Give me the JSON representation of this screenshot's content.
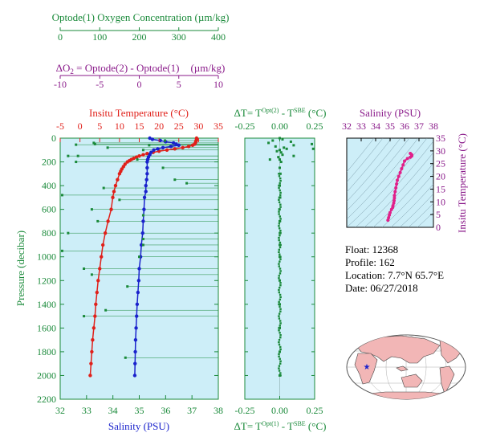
{
  "colors": {
    "oxygen": "#1a8a3a",
    "delta_o2": "#8a1a8a",
    "temperature": "#e0201a",
    "salinity": "#1a22cc",
    "delta_t": "#1a8a3a",
    "ts": "#e0208a",
    "panel_bg": "#cdeef8"
  },
  "chart_data": [
    {
      "type": "scatter",
      "panel": "profiles",
      "axes": {
        "oxygen": {
          "label": "Optode(1) Oxygen Concentration (µm/kg)",
          "ticks": [
            "0",
            "100",
            "200",
            "300",
            "400"
          ],
          "range": [
            0,
            400
          ]
        },
        "delta_o2": {
          "label_prefix": "ΔO",
          "label_sub": "2",
          "label_rest": " = Optode(2) - Optode(1)",
          "label_unit": "(µm/kg)",
          "ticks": [
            "-10",
            "-5",
            "0",
            "5",
            "10"
          ],
          "range": [
            -10,
            10
          ]
        },
        "temperature": {
          "label": "Insitu Temperature (°C)",
          "ticks": [
            "-5",
            "0",
            "5",
            "10",
            "15",
            "20",
            "25",
            "30",
            "35"
          ],
          "range": [
            -5,
            35
          ]
        },
        "salinity": {
          "label": "Salinity (PSU)",
          "ticks": [
            "32",
            "33",
            "34",
            "35",
            "36",
            "37",
            "38"
          ],
          "range": [
            32,
            38
          ]
        },
        "pressure": {
          "label": "Pressure (decibar)",
          "ticks": [
            "0",
            "200",
            "400",
            "600",
            "800",
            "1000",
            "1200",
            "1400",
            "1600",
            "1800",
            "2000",
            "2200"
          ],
          "range": [
            0,
            2200
          ],
          "inverted": true
        }
      },
      "temperature_profile": {
        "pressure": [
          0,
          10,
          20,
          30,
          40,
          50,
          60,
          70,
          80,
          90,
          100,
          110,
          120,
          130,
          140,
          150,
          160,
          170,
          180,
          190,
          200,
          220,
          240,
          260,
          280,
          300,
          350,
          400,
          450,
          500,
          600,
          700,
          800,
          900,
          1000,
          1100,
          1200,
          1300,
          1400,
          1500,
          1600,
          1700,
          1800,
          1900,
          2000
        ],
        "values": [
          29.5,
          29.5,
          29.4,
          29.3,
          29.2,
          29.0,
          28.5,
          27.5,
          26.0,
          24.0,
          22.0,
          20.0,
          18.5,
          17.0,
          16.0,
          15.0,
          14.3,
          13.6,
          13.0,
          12.5,
          12.0,
          11.4,
          11.0,
          10.6,
          10.3,
          10.0,
          9.5,
          9.0,
          8.6,
          8.3,
          7.9,
          7.1,
          6.4,
          5.8,
          5.4,
          5.0,
          4.6,
          4.3,
          4.0,
          3.8,
          3.5,
          3.2,
          3.0,
          2.8,
          2.6
        ]
      },
      "salinity_profile": {
        "pressure": [
          0,
          10,
          20,
          30,
          40,
          50,
          60,
          70,
          80,
          90,
          100,
          120,
          140,
          160,
          180,
          200,
          250,
          300,
          350,
          400,
          450,
          500,
          600,
          700,
          800,
          900,
          1000,
          1100,
          1200,
          1300,
          1400,
          1500,
          1600,
          1700,
          1800,
          1900,
          2000
        ],
        "values": [
          35.4,
          35.5,
          35.8,
          36.0,
          36.3,
          36.4,
          36.5,
          36.2,
          35.9,
          35.7,
          35.55,
          35.45,
          35.4,
          35.35,
          35.32,
          35.3,
          35.3,
          35.3,
          35.28,
          35.25,
          35.25,
          35.2,
          35.18,
          35.15,
          35.13,
          35.08,
          35.05,
          35.0,
          34.98,
          34.95,
          34.92,
          34.9,
          34.88,
          34.86,
          34.85,
          34.84,
          34.83
        ]
      },
      "oxygen_points": {
        "pressure": [
          20,
          40,
          50,
          55,
          60,
          80,
          100,
          150,
          150,
          180,
          200,
          250,
          350,
          380,
          420,
          480,
          520,
          600,
          650,
          700,
          800,
          850,
          900,
          950,
          1000,
          1100,
          1150,
          1250,
          1450,
          1500,
          1850
        ],
        "values": [
          265,
          85,
          88,
          40,
          225,
          120,
          210,
          20,
          45,
          195,
          40,
          260,
          290,
          320,
          110,
          5,
          150,
          80,
          210,
          95,
          20,
          210,
          210,
          5,
          200,
          60,
          80,
          170,
          115,
          60,
          165
        ]
      }
    },
    {
      "type": "scatter",
      "panel": "delta_t",
      "top_label": {
        "prefix": "ΔT= T",
        "sup1": "Opt(2)",
        "mid": " - T",
        "sup2": "SBE",
        "unit": " (°C)"
      },
      "bottom_label": {
        "prefix": "ΔT= T",
        "sup1": "Opt(1)",
        "mid": " - T",
        "sup2": "SBE",
        "unit": " (°C)"
      },
      "ticks": [
        "-0.25",
        "0.00",
        "0.25"
      ],
      "xlim": [
        -0.25,
        0.25
      ],
      "pressure": [
        0,
        10,
        20,
        30,
        40,
        50,
        60,
        70,
        80,
        90,
        100,
        110,
        120,
        140,
        160,
        180,
        200,
        250,
        300,
        400,
        500,
        600,
        700,
        800,
        900,
        1000,
        1200,
        1400,
        1600,
        1800,
        2000
      ],
      "values": [
        0.0,
        0.02,
        -0.05,
        0.08,
        -0.08,
        0.23,
        0.1,
        -0.03,
        0.03,
        0.05,
        0.0,
        -0.02,
        0.01,
        0.02,
        -0.01,
        0.0,
        0.01,
        0.0,
        0.005,
        0.0,
        0.003,
        -0.002,
        0.0,
        0.001,
        0.0,
        0.0,
        0.0,
        0.0,
        0.0,
        0.0,
        0.0
      ],
      "outliers": {
        "pressure": [
          90,
          150,
          180
        ],
        "values": [
          0.24,
          0.1,
          -0.07
        ]
      }
    },
    {
      "type": "scatter",
      "panel": "ts",
      "title": "Salinity (PSU)",
      "ylabel": "Insitu Temperature (°C)",
      "x_ticks": [
        "32",
        "33",
        "34",
        "35",
        "36",
        "37",
        "38"
      ],
      "y_ticks": [
        "0",
        "5",
        "10",
        "15",
        "20",
        "25",
        "30",
        "35"
      ],
      "xlim": [
        32,
        38
      ],
      "ylim": [
        0,
        35
      ],
      "salinity": [
        36.4,
        36.5,
        36.5,
        36.4,
        36.2,
        36.0,
        35.9,
        35.8,
        35.7,
        35.6,
        35.5,
        35.45,
        35.4,
        35.35,
        35.3,
        35.3,
        35.28,
        35.25,
        35.2,
        35.18,
        35.1,
        35.0,
        34.95,
        34.9,
        34.85
      ],
      "temperature": [
        29.0,
        28.5,
        28.0,
        27.5,
        27.0,
        26.0,
        24.5,
        23.0,
        21.5,
        20.0,
        18.5,
        17.0,
        15.5,
        14.0,
        12.5,
        11.5,
        10.5,
        9.5,
        8.5,
        7.8,
        7.0,
        5.8,
        4.8,
        3.8,
        2.8
      ]
    }
  ],
  "info": {
    "float": "Float:  12368",
    "profile": "Profile:  162",
    "location": "Location:  7.7°N  65.7°E",
    "date": "Date:  06/27/2018"
  }
}
